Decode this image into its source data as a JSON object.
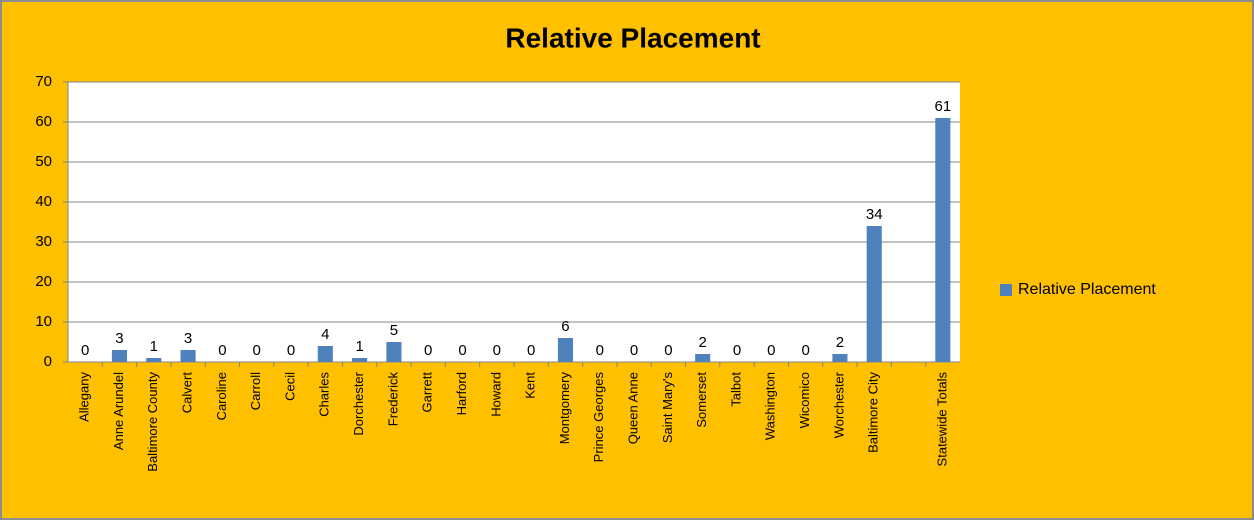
{
  "chart_data": {
    "type": "bar",
    "title": "Relative Placement",
    "categories": [
      "Allegany",
      "Anne Arundel",
      "Baltimore County",
      "Calvert",
      "Caroline",
      "Carroll",
      "Cecil",
      "Charles",
      "Dorchester",
      "Frederick",
      "Garrett",
      "Harford",
      "Howard",
      "Kent",
      "Montgomery",
      "Prince Georges",
      "Queen Anne",
      "Saint Mary's",
      "Somerset",
      "Talbot",
      "Washington",
      "Wicomico",
      "Worchester",
      "Baltimore City",
      null,
      "Statewide Totals"
    ],
    "series": [
      {
        "name": "Relative Placement",
        "color": "#4f81bd",
        "values": [
          0,
          3,
          1,
          3,
          0,
          0,
          0,
          4,
          1,
          5,
          0,
          0,
          0,
          0,
          6,
          0,
          0,
          0,
          2,
          0,
          0,
          0,
          2,
          34,
          null,
          61
        ]
      }
    ],
    "ylim": [
      0,
      70
    ],
    "yticks": [
      0,
      10,
      20,
      30,
      40,
      50,
      60,
      70
    ],
    "grid": true,
    "legend": "right"
  }
}
